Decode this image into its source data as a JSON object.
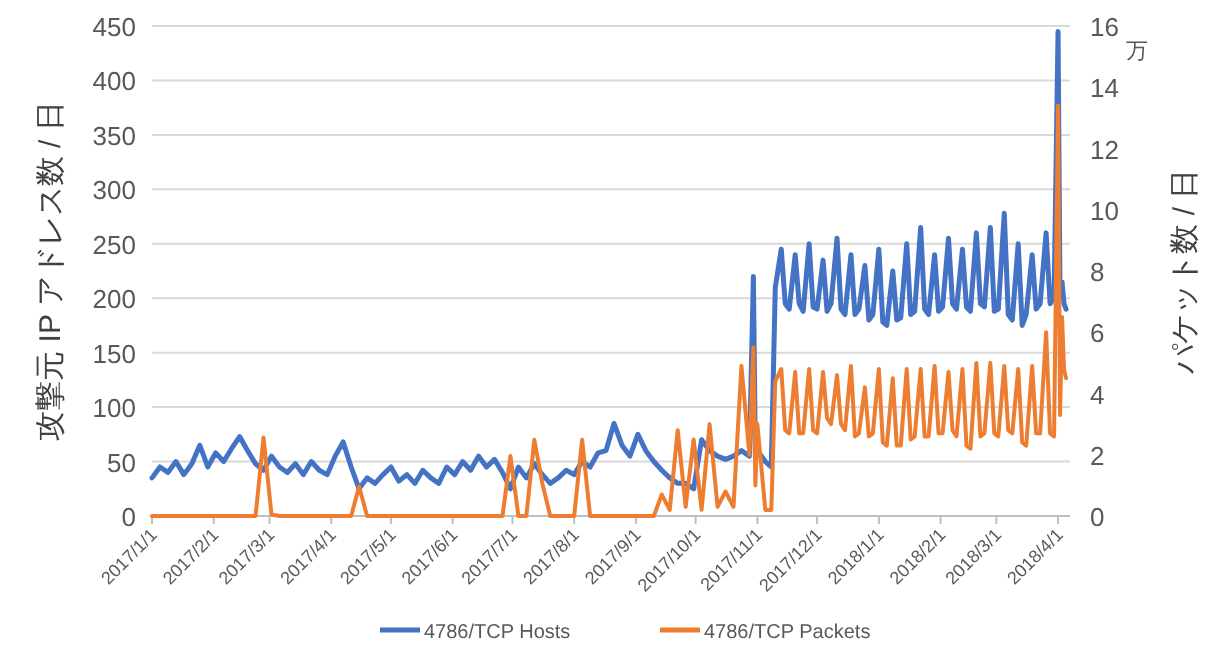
{
  "chart_data": {
    "type": "line",
    "ylabel": "攻撃元 IP アドレス数 / 日",
    "y2label": "パケット数 / 日",
    "annotations": [
      "万"
    ],
    "x": [
      "2017-01-01",
      "2017-01-05",
      "2017-01-09",
      "2017-01-13",
      "2017-01-17",
      "2017-01-21",
      "2017-01-25",
      "2017-01-29",
      "2017-02-02",
      "2017-02-06",
      "2017-02-10",
      "2017-02-14",
      "2017-02-18",
      "2017-02-22",
      "2017-02-26",
      "2017-03-02",
      "2017-03-06",
      "2017-03-10",
      "2017-03-14",
      "2017-03-18",
      "2017-03-22",
      "2017-03-26",
      "2017-03-30",
      "2017-04-03",
      "2017-04-07",
      "2017-04-11",
      "2017-04-15",
      "2017-04-19",
      "2017-04-23",
      "2017-04-27",
      "2017-05-01",
      "2017-05-05",
      "2017-05-09",
      "2017-05-13",
      "2017-05-17",
      "2017-05-21",
      "2017-05-25",
      "2017-05-29",
      "2017-06-02",
      "2017-06-06",
      "2017-06-10",
      "2017-06-14",
      "2017-06-18",
      "2017-06-22",
      "2017-06-26",
      "2017-06-30",
      "2017-07-04",
      "2017-07-08",
      "2017-07-12",
      "2017-07-16",
      "2017-07-20",
      "2017-07-24",
      "2017-07-28",
      "2017-08-01",
      "2017-08-05",
      "2017-08-09",
      "2017-08-13",
      "2017-08-17",
      "2017-08-21",
      "2017-08-25",
      "2017-08-29",
      "2017-09-02",
      "2017-09-06",
      "2017-09-10",
      "2017-09-14",
      "2017-09-18",
      "2017-09-22",
      "2017-09-26",
      "2017-09-30",
      "2017-10-04",
      "2017-10-08",
      "2017-10-12",
      "2017-10-16",
      "2017-10-20",
      "2017-10-24",
      "2017-10-28",
      "2017-10-30",
      "2017-10-31",
      "2017-11-01",
      "2017-11-05",
      "2017-11-08",
      "2017-11-10",
      "2017-11-13",
      "2017-11-15",
      "2017-11-17",
      "2017-11-20",
      "2017-11-22",
      "2017-11-24",
      "2017-11-27",
      "2017-11-29",
      "2017-12-01",
      "2017-12-04",
      "2017-12-06",
      "2017-12-08",
      "2017-12-11",
      "2017-12-13",
      "2017-12-15",
      "2017-12-18",
      "2017-12-20",
      "2017-12-22",
      "2017-12-25",
      "2017-12-27",
      "2017-12-29",
      "2018-01-01",
      "2018-01-03",
      "2018-01-05",
      "2018-01-08",
      "2018-01-10",
      "2018-01-12",
      "2018-01-15",
      "2018-01-17",
      "2018-01-19",
      "2018-01-22",
      "2018-01-24",
      "2018-01-26",
      "2018-01-29",
      "2018-01-31",
      "2018-02-02",
      "2018-02-05",
      "2018-02-07",
      "2018-02-09",
      "2018-02-12",
      "2018-02-14",
      "2018-02-16",
      "2018-02-19",
      "2018-02-21",
      "2018-02-23",
      "2018-02-26",
      "2018-02-28",
      "2018-03-02",
      "2018-03-05",
      "2018-03-07",
      "2018-03-09",
      "2018-03-12",
      "2018-03-14",
      "2018-03-16",
      "2018-03-19",
      "2018-03-21",
      "2018-03-23",
      "2018-03-26",
      "2018-03-28",
      "2018-03-30",
      "2018-04-01",
      "2018-04-02",
      "2018-04-03",
      "2018-04-04",
      "2018-04-05"
    ],
    "series": [
      {
        "name": "4786/TCP Hosts",
        "color": "#4472c4",
        "values": [
          35,
          45,
          40,
          50,
          38,
          48,
          65,
          45,
          58,
          50,
          62,
          73,
          60,
          48,
          42,
          55,
          45,
          40,
          48,
          38,
          50,
          42,
          38,
          55,
          68,
          45,
          25,
          35,
          30,
          38,
          45,
          32,
          38,
          30,
          42,
          35,
          30,
          45,
          38,
          50,
          42,
          55,
          45,
          52,
          40,
          25,
          45,
          35,
          48,
          38,
          30,
          35,
          42,
          38,
          50,
          45,
          58,
          60,
          85,
          65,
          55,
          75,
          60,
          50,
          42,
          35,
          30,
          30,
          25,
          70,
          60,
          55,
          52,
          55,
          60,
          55,
          220,
          55,
          60,
          50,
          45,
          210,
          245,
          195,
          190,
          240,
          195,
          188,
          250,
          192,
          190,
          235,
          188,
          195,
          255,
          190,
          185,
          240,
          185,
          190,
          230,
          180,
          185,
          245,
          178,
          175,
          225,
          180,
          182,
          250,
          185,
          188,
          265,
          190,
          185,
          240,
          188,
          192,
          255,
          195,
          190,
          245,
          192,
          188,
          260,
          195,
          192,
          265,
          188,
          190,
          278,
          185,
          180,
          250,
          175,
          185,
          240,
          190,
          195,
          260,
          195,
          200,
          445,
          200,
          215,
          195,
          190
        ]
      },
      {
        "name": "4786/TCP Packets",
        "color": "#ed7d31",
        "axis": "y2",
        "values": [
          0,
          0,
          0,
          0,
          0,
          0,
          0,
          0,
          0,
          0,
          0,
          0,
          0,
          0,
          2.56,
          0.05,
          0,
          0,
          0,
          0,
          0,
          0,
          0,
          0,
          0,
          0,
          0.96,
          0,
          0,
          0,
          0,
          0,
          0,
          0,
          0,
          0,
          0,
          0,
          0,
          0,
          0,
          0,
          0,
          0,
          0,
          1.96,
          0,
          0,
          2.49,
          1.07,
          0,
          0,
          0,
          0,
          2.49,
          0,
          0,
          0,
          0,
          0,
          0,
          0,
          0,
          0,
          0.7,
          0.2,
          2.8,
          0.3,
          2.5,
          0.2,
          3.0,
          0.3,
          0.8,
          0.3,
          4.9,
          2.0,
          5.5,
          1.0,
          3.0,
          0.2,
          0.2,
          4.4,
          4.8,
          2.8,
          2.7,
          4.7,
          2.7,
          2.7,
          4.8,
          2.8,
          2.7,
          4.7,
          3.2,
          3.0,
          4.6,
          3.0,
          2.8,
          4.9,
          2.6,
          2.7,
          4.2,
          2.6,
          2.7,
          4.8,
          2.4,
          2.3,
          4.5,
          2.3,
          2.3,
          4.8,
          2.5,
          2.6,
          4.8,
          2.6,
          2.6,
          4.9,
          2.7,
          2.7,
          4.7,
          2.8,
          2.6,
          4.8,
          2.3,
          2.2,
          5.0,
          2.6,
          2.7,
          5.0,
          2.7,
          2.6,
          4.9,
          2.8,
          2.7,
          4.8,
          2.4,
          2.3,
          4.9,
          2.7,
          2.7,
          6.0,
          2.7,
          2.6,
          13.4,
          3.3,
          6.5,
          4.8,
          4.5
        ]
      }
    ],
    "xlim": [
      "2017-01-01",
      "2018-04-07"
    ],
    "xticks": [
      {
        "value": "2017-01-01",
        "label": "2017/1/1"
      },
      {
        "value": "2017-02-01",
        "label": "2017/2/1"
      },
      {
        "value": "2017-03-01",
        "label": "2017/3/1"
      },
      {
        "value": "2017-04-01",
        "label": "2017/4/1"
      },
      {
        "value": "2017-05-01",
        "label": "2017/5/1"
      },
      {
        "value": "2017-06-01",
        "label": "2017/6/1"
      },
      {
        "value": "2017-07-01",
        "label": "2017/7/1"
      },
      {
        "value": "2017-08-01",
        "label": "2017/8/1"
      },
      {
        "value": "2017-09-01",
        "label": "2017/9/1"
      },
      {
        "value": "2017-10-01",
        "label": "2017/10/1"
      },
      {
        "value": "2017-11-01",
        "label": "2017/11/1"
      },
      {
        "value": "2017-12-01",
        "label": "2017/12/1"
      },
      {
        "value": "2018-01-01",
        "label": "2018/1/1"
      },
      {
        "value": "2018-02-01",
        "label": "2018/2/1"
      },
      {
        "value": "2018-03-01",
        "label": "2018/3/1"
      },
      {
        "value": "2018-04-01",
        "label": "2018/4/1"
      }
    ],
    "ylim": [
      0,
      450
    ],
    "yticks": [
      0,
      50,
      100,
      150,
      200,
      250,
      300,
      350,
      400,
      450
    ],
    "y2lim": [
      0,
      16
    ],
    "y2ticks": [
      0,
      2,
      4,
      6,
      8,
      10,
      12,
      14,
      16
    ],
    "grid": "y",
    "legend": "bottom",
    "marker": "none",
    "line_style": "solid"
  }
}
